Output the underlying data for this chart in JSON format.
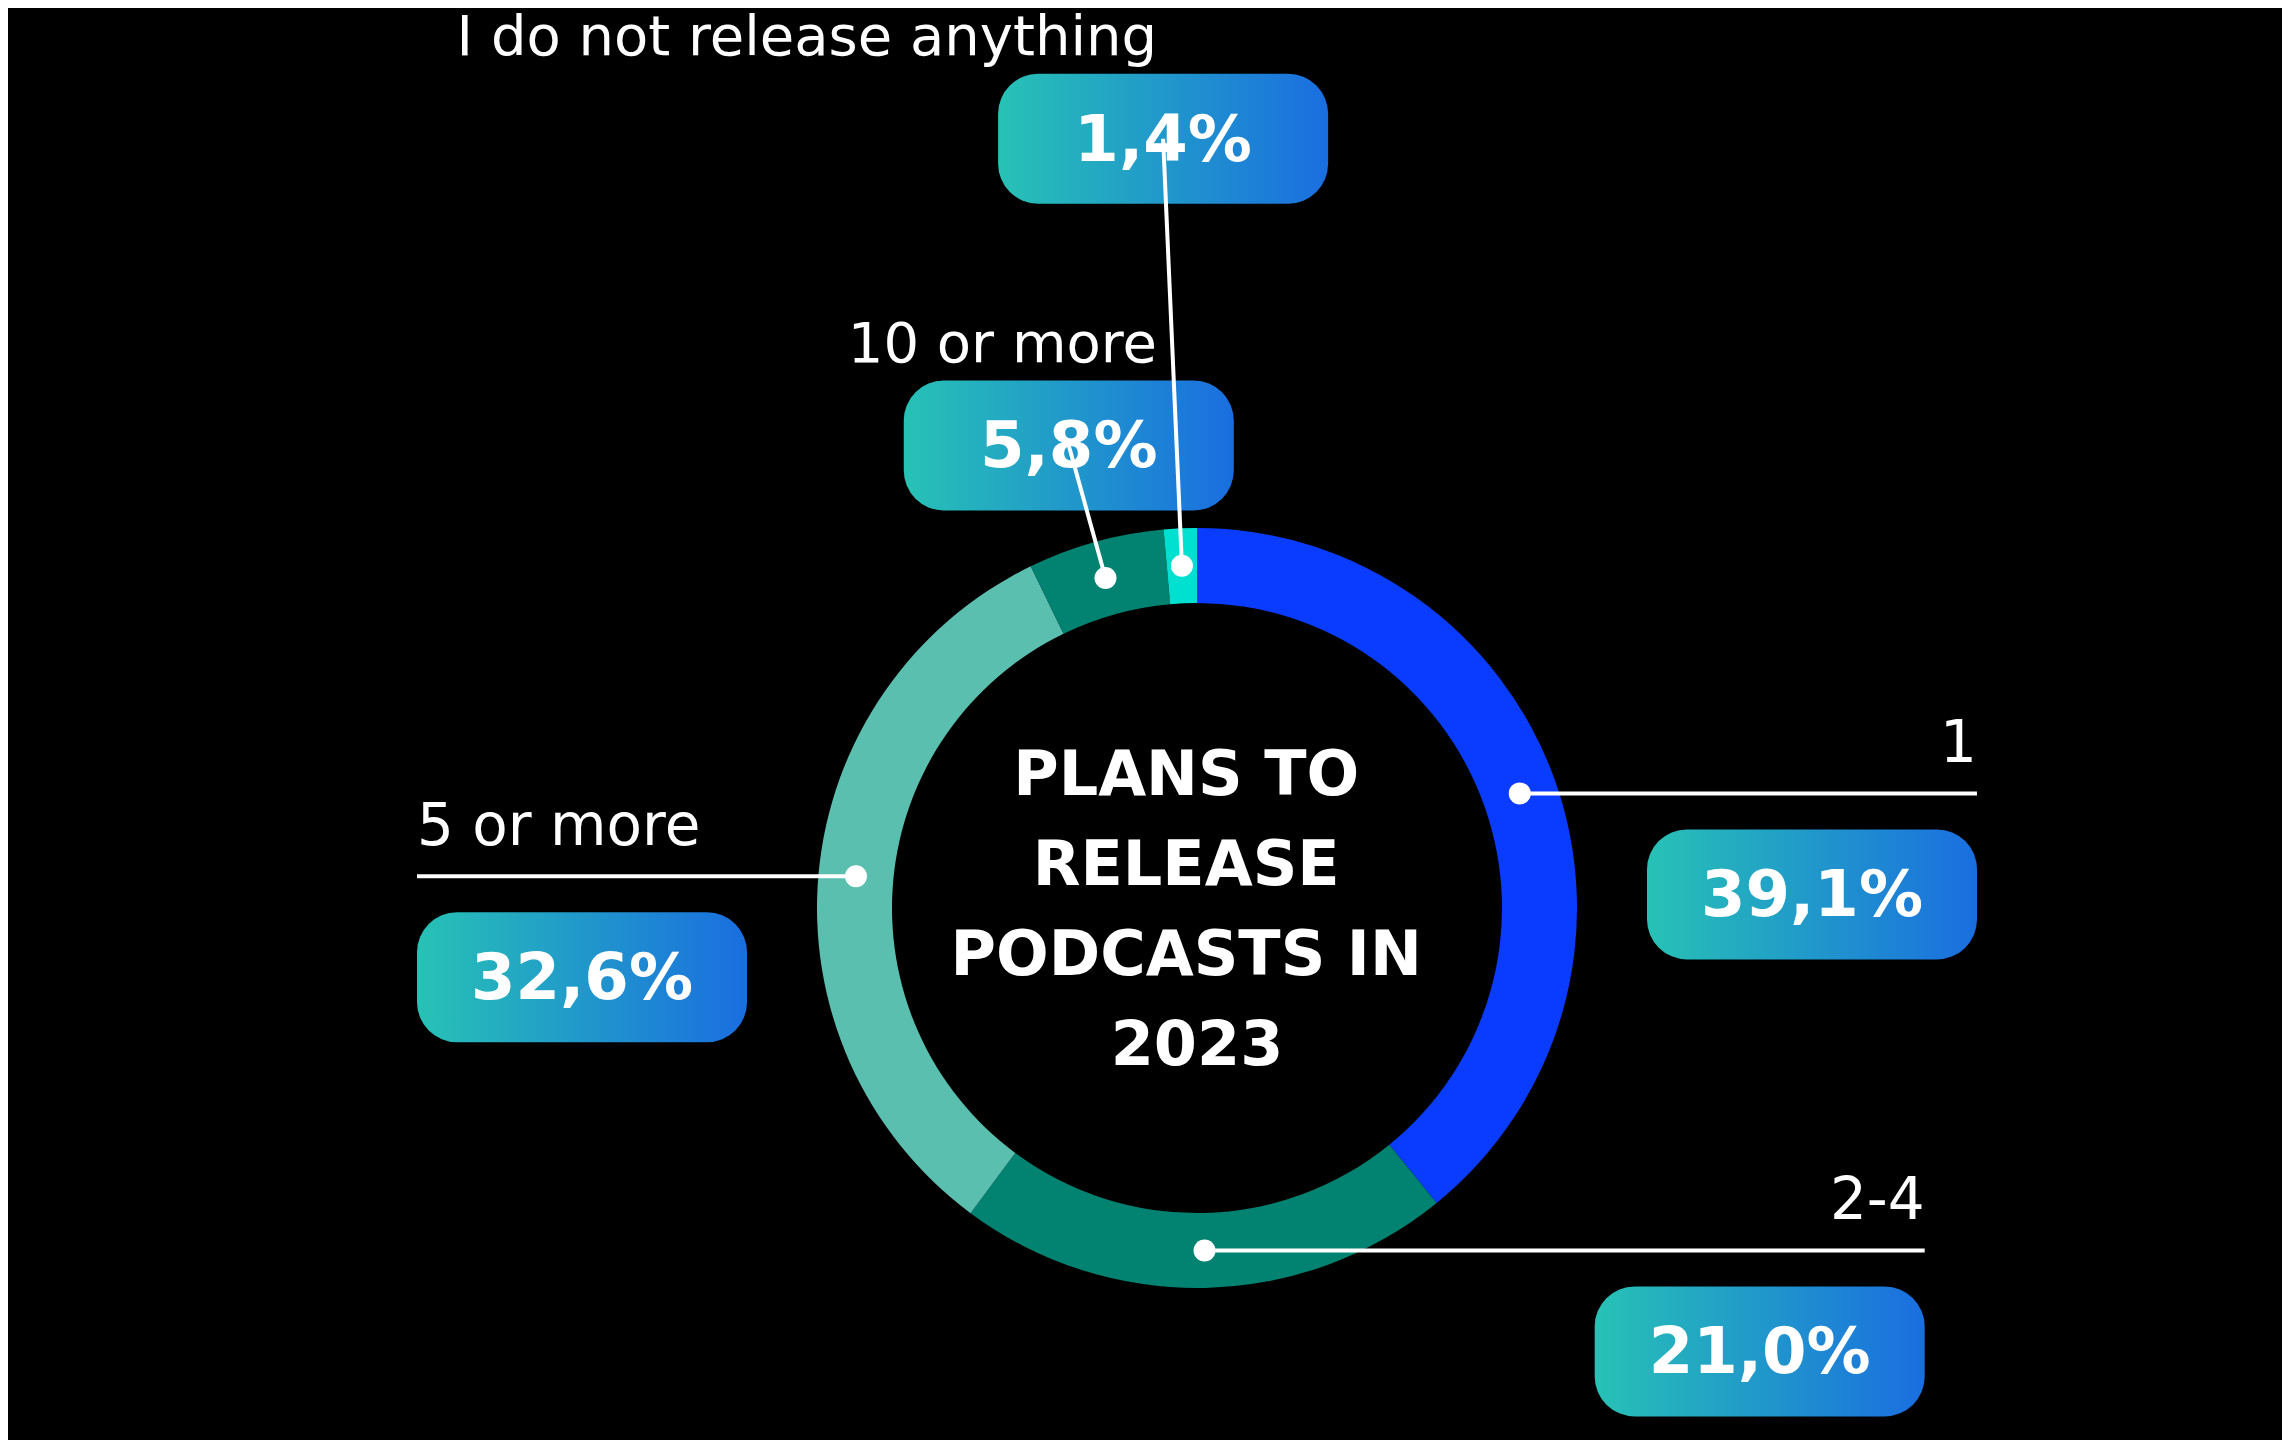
{
  "chart_data": {
    "type": "donut",
    "title": "PLANS TO RELEASE PODCASTS IN 2023",
    "categories": [
      "1",
      "2-4",
      "5 or more",
      "10 or more",
      "I do not release anything"
    ],
    "values": [
      39.1,
      21.0,
      32.6,
      5.8,
      1.4
    ],
    "value_labels": [
      "39,1%",
      "21,0%",
      "32,6%",
      "5,8%",
      "1,4%"
    ],
    "colors": [
      "#0a3cff",
      "#028270",
      "#5bbfb0",
      "#028270",
      "#00e0d0"
    ],
    "legend": false
  }
}
